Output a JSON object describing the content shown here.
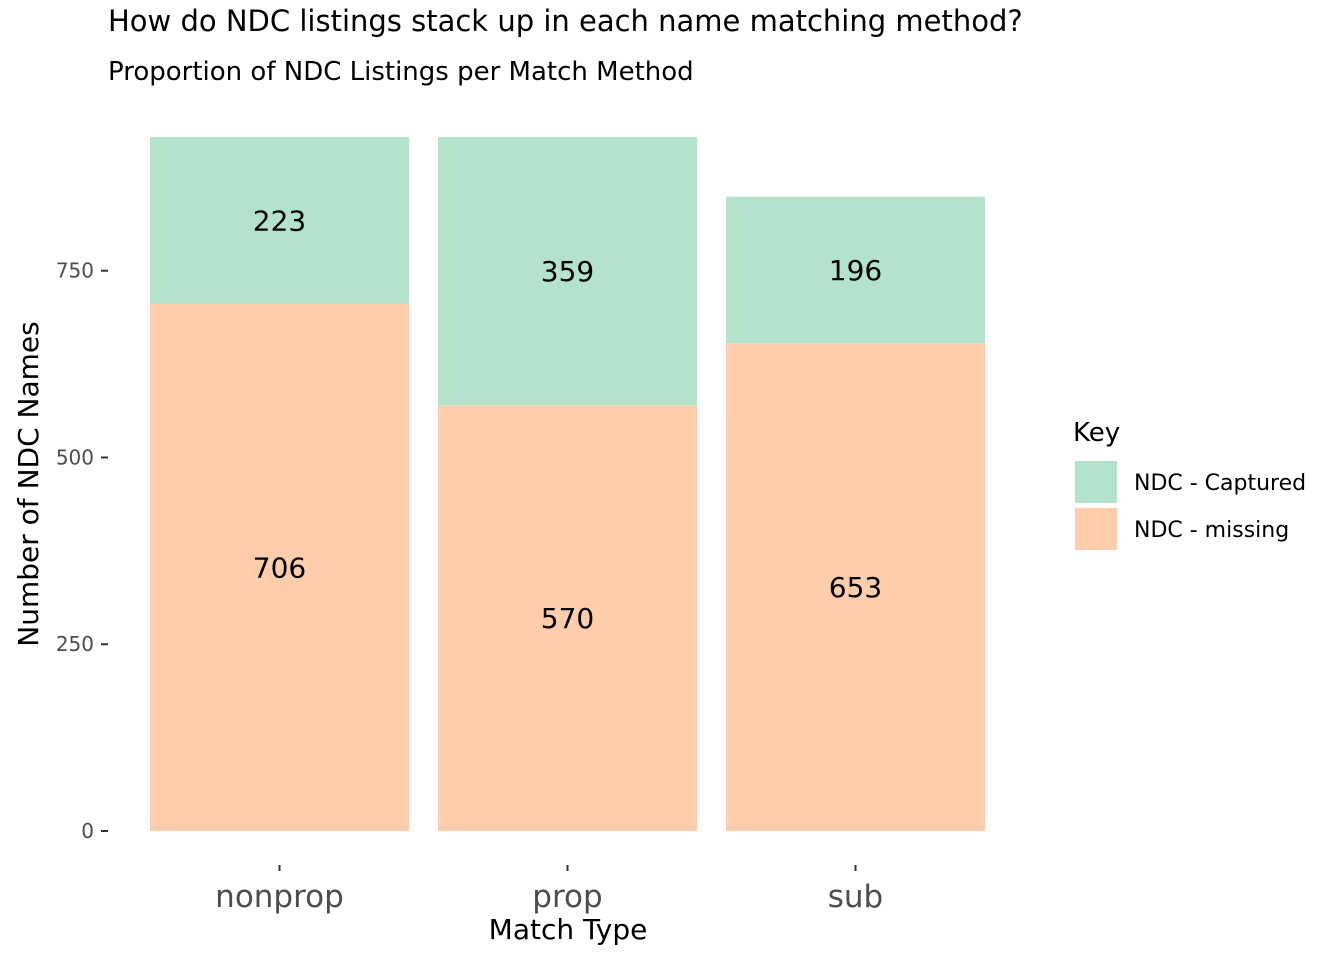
{
  "chart_data": {
    "type": "bar",
    "stacked": true,
    "title": "How do NDC listings stack up in each name matching method?",
    "subtitle": "Proportion of NDC Listings per Match Method",
    "xlabel": "Match Type",
    "ylabel": "Number of NDC Names",
    "categories": [
      "nonprop",
      "prop",
      "sub"
    ],
    "series": [
      {
        "name": "NDC - missing",
        "values": [
          706,
          570,
          653
        ],
        "color": "#FDCDAC"
      },
      {
        "name": "NDC - Captured",
        "values": [
          223,
          359,
          196
        ],
        "color": "#B3E2CD"
      }
    ],
    "ylim": [
      0,
      929
    ],
    "yticks": [
      0,
      250,
      500,
      750
    ],
    "grid": false,
    "legend": {
      "title": "Key",
      "position": "right",
      "entries": [
        "NDC - Captured",
        "NDC - missing"
      ]
    }
  }
}
